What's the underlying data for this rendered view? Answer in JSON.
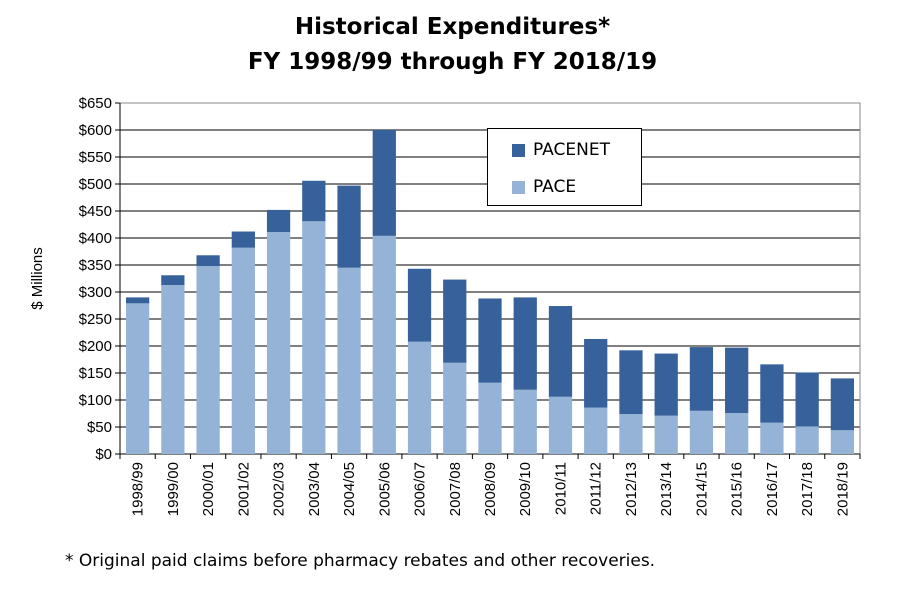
{
  "colors": {
    "pacenet": "#36619a",
    "pace": "#95b3d7",
    "grid": "#000000"
  },
  "chart_data": {
    "type": "bar",
    "stacked": true,
    "title": "Historical Expenditures*",
    "subtitle": "FY 1998/99 through FY 2018/19",
    "ylabel": "$ Millions",
    "xlabel": "",
    "ylim": [
      0,
      650
    ],
    "yticks": [
      "$0",
      "$50",
      "$100",
      "$150",
      "$200",
      "$250",
      "$300",
      "$350",
      "$400",
      "$450",
      "$500",
      "$550",
      "$600",
      "$650"
    ],
    "grid": "horizontal",
    "legend_position": "top-center",
    "categories": [
      "1998/99",
      "1999/00",
      "2000/01",
      "2001/02",
      "2002/03",
      "2003/04",
      "2004/05",
      "2005/06",
      "2006/07",
      "2007/08",
      "2008/09",
      "2009/10",
      "2010/11",
      "2011/12",
      "2012/13",
      "2013/14",
      "2014/15",
      "2015/16",
      "2016/17",
      "2017/18",
      "2018/19"
    ],
    "series": [
      {
        "name": "PACE",
        "values": [
          279,
          313,
          348,
          382,
          411,
          431,
          345,
          404,
          208,
          169,
          132,
          119,
          106,
          86,
          74,
          71,
          80,
          76,
          58,
          51,
          44
        ]
      },
      {
        "name": "PACENET",
        "values": [
          11,
          18,
          20,
          30,
          41,
          75,
          152,
          196,
          135,
          154,
          156,
          171,
          168,
          127,
          118,
          115,
          118,
          121,
          108,
          100,
          96
        ]
      }
    ],
    "legend": [
      "PACENET",
      "PACE"
    ]
  },
  "footnote": "* Original paid claims before pharmacy rebates and other recoveries."
}
